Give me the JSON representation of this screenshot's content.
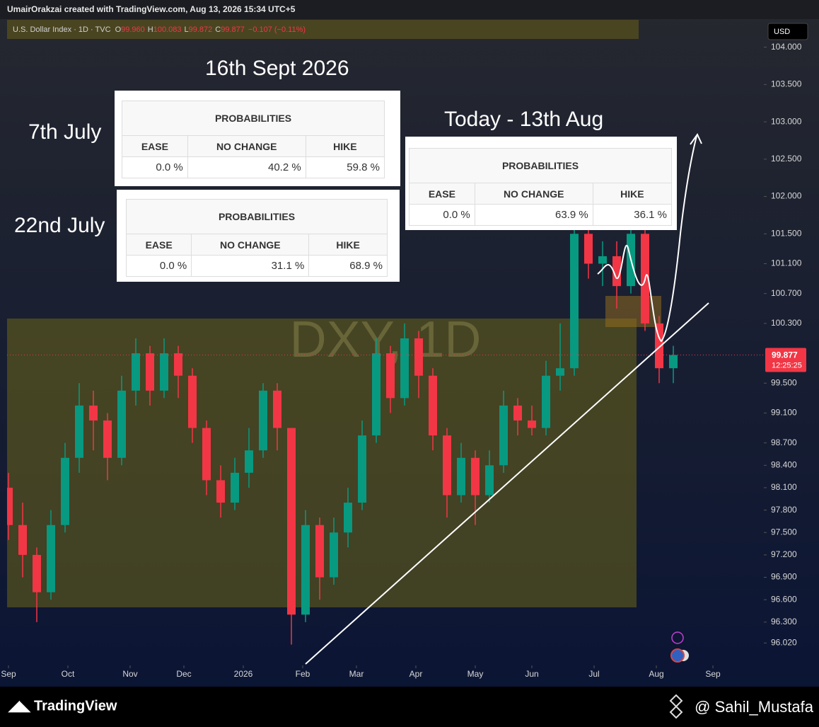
{
  "header": {
    "credit": "UmairOrakzai created with TradingView.com, Aug 13, 2026 15:34 UTC+5",
    "symbol": "U.S. Dollar Index · 1D · TVC",
    "ohlc": [
      {
        "key": "O",
        "value": "99.960"
      },
      {
        "key": "H",
        "value": "100.083"
      },
      {
        "key": "L",
        "value": "99.872"
      },
      {
        "key": "C",
        "value": "99.877"
      }
    ],
    "change": "−0.107 (−0.11%)"
  },
  "currency": "USD",
  "watermark": "DXY, 1D",
  "annotations": {
    "sept": "16th Sept 2026",
    "july7": "7th July",
    "july22": "22nd July",
    "today": "Today - 13th Aug"
  },
  "tables": [
    {
      "title": "PROBABILITIES",
      "columns": [
        "EASE",
        "NO CHANGE",
        "HIKE"
      ],
      "values": [
        "0.0 %",
        "40.2 %",
        "59.8 %"
      ]
    },
    {
      "title": "PROBABILITIES",
      "columns": [
        "EASE",
        "NO CHANGE",
        "HIKE"
      ],
      "values": [
        "0.0 %",
        "31.1 %",
        "68.9 %"
      ]
    },
    {
      "title": "PROBABILITIES",
      "columns": [
        "EASE",
        "NO CHANGE",
        "HIKE"
      ],
      "values": [
        "0.0 %",
        "63.9 %",
        "36.1 %"
      ]
    }
  ],
  "chart_data": {
    "type": "candlestick",
    "x": [
      0,
      5,
      10,
      15,
      20,
      25,
      30,
      35,
      40,
      45,
      50,
      55,
      60,
      65,
      70,
      75,
      80,
      85,
      90,
      95,
      100,
      105,
      110,
      115,
      120,
      125,
      130,
      135,
      140,
      145,
      150,
      155,
      160,
      165,
      170,
      175,
      180,
      185,
      190,
      195,
      200,
      205,
      210,
      215,
      220,
      225,
      230,
      235
    ],
    "open": [
      98.1,
      97.6,
      97.2,
      96.7,
      97.6,
      98.5,
      99.2,
      99.0,
      98.5,
      99.4,
      99.9,
      99.4,
      99.9,
      99.6,
      98.9,
      98.2,
      97.9,
      98.3,
      98.6,
      99.4,
      98.9,
      96.4,
      97.6,
      96.9,
      97.5,
      97.9,
      98.8,
      99.9,
      99.3,
      100.1,
      99.6,
      98.8,
      98.0,
      98.5,
      98.0,
      98.4,
      99.2,
      99.0,
      98.9,
      99.6,
      99.7,
      101.5,
      101.1,
      101.2,
      100.8,
      101.5,
      100.3,
      99.7
    ],
    "high": [
      98.3,
      97.9,
      97.3,
      97.8,
      98.7,
      99.5,
      99.4,
      99.1,
      99.6,
      100.1,
      100.0,
      100.1,
      100.0,
      99.7,
      99.0,
      98.4,
      98.5,
      98.9,
      99.5,
      99.5,
      98.9,
      97.8,
      97.7,
      97.7,
      98.1,
      99.0,
      100.1,
      100.0,
      100.3,
      100.2,
      99.7,
      98.9,
      98.7,
      98.6,
      98.6,
      99.4,
      99.3,
      99.2,
      99.8,
      100.3,
      101.7,
      101.7,
      101.4,
      101.4,
      101.6,
      101.6,
      100.4,
      100.0
    ],
    "low": [
      97.4,
      96.9,
      96.3,
      96.6,
      97.5,
      98.3,
      98.6,
      98.2,
      98.4,
      99.2,
      99.2,
      99.3,
      99.3,
      98.7,
      98.0,
      97.7,
      97.8,
      98.1,
      98.5,
      98.6,
      96.0,
      96.3,
      96.6,
      96.8,
      97.3,
      97.8,
      98.7,
      99.1,
      99.2,
      99.3,
      98.6,
      97.7,
      97.9,
      97.6,
      97.9,
      98.3,
      98.8,
      98.8,
      98.8,
      99.4,
      99.6,
      100.9,
      100.8,
      100.5,
      100.7,
      100.2,
      99.5,
      99.5
    ],
    "close": [
      97.6,
      97.2,
      96.7,
      97.6,
      98.5,
      99.2,
      99.0,
      98.5,
      99.4,
      99.9,
      99.4,
      99.9,
      99.6,
      98.9,
      98.2,
      97.9,
      98.3,
      98.6,
      99.4,
      98.9,
      96.4,
      97.6,
      96.9,
      97.5,
      97.9,
      98.8,
      99.9,
      99.3,
      100.1,
      99.6,
      98.8,
      98.0,
      98.5,
      98.0,
      98.4,
      99.2,
      99.0,
      98.9,
      99.6,
      99.7,
      101.5,
      101.1,
      101.2,
      100.8,
      101.5,
      100.3,
      99.7,
      99.877
    ],
    "up_color": "#089981",
    "down_color": "#f23645",
    "countdown": "12:25:25",
    "xlim": [
      -0.5,
      267
    ],
    "xticks": [
      {
        "value": 0,
        "label": "Sep"
      },
      {
        "value": 21,
        "label": "Oct"
      },
      {
        "value": 43,
        "label": "Nov"
      },
      {
        "value": 62,
        "label": "Dec"
      },
      {
        "value": 83,
        "label": "2026"
      },
      {
        "value": 104,
        "label": "Feb"
      },
      {
        "value": 123,
        "label": "Mar"
      },
      {
        "value": 144,
        "label": "Apr"
      },
      {
        "value": 165,
        "label": "May"
      },
      {
        "value": 185,
        "label": "Jun"
      },
      {
        "value": 207,
        "label": "Jul"
      },
      {
        "value": 229,
        "label": "Aug"
      },
      {
        "value": 249,
        "label": "Sep"
      }
    ],
    "ylim": [
      95.72,
      104.11
    ],
    "yticks": [
      {
        "value": 104,
        "label": "104.000"
      },
      {
        "value": 103.5,
        "label": "103.500"
      },
      {
        "value": 103,
        "label": "103.000"
      },
      {
        "value": 102.5,
        "label": "102.500"
      },
      {
        "value": 102,
        "label": "102.000"
      },
      {
        "value": 101.5,
        "label": "101.500"
      },
      {
        "value": 101.1,
        "label": "101.100"
      },
      {
        "value": 100.7,
        "label": "100.700"
      },
      {
        "value": 100.3,
        "label": "100.300"
      },
      {
        "value": 99.5,
        "label": "99.500"
      },
      {
        "value": 99.1,
        "label": "99.100"
      },
      {
        "value": 98.7,
        "label": "98.700"
      },
      {
        "value": 98.4,
        "label": "98.400"
      },
      {
        "value": 98.1,
        "label": "98.100"
      },
      {
        "value": 97.8,
        "label": "97.800"
      },
      {
        "value": 97.5,
        "label": "97.500"
      },
      {
        "value": 97.2,
        "label": "97.200"
      },
      {
        "value": 96.9,
        "label": "96.900"
      },
      {
        "value": 96.6,
        "label": "96.600"
      },
      {
        "value": 96.3,
        "label": "96.300"
      },
      {
        "value": 96.02,
        "label": "96.020"
      }
    ]
  },
  "footer": {
    "brand": "TradingView",
    "author": "@ Sahil_Mustafa"
  }
}
